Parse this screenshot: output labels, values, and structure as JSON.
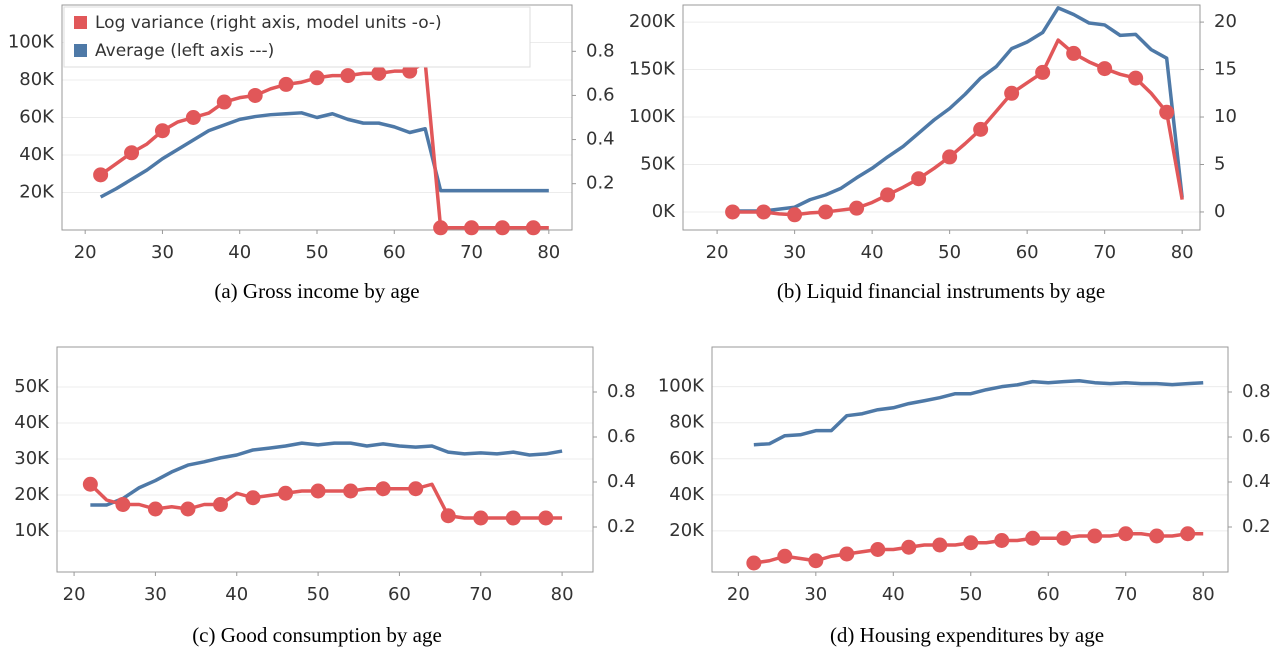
{
  "chart_data": [
    {
      "type": "line",
      "caption": "(a) Gross income by age",
      "legend": "upper left",
      "grid": true,
      "x": [
        22,
        24,
        26,
        28,
        30,
        32,
        34,
        36,
        38,
        40,
        42,
        44,
        46,
        48,
        50,
        52,
        54,
        56,
        58,
        60,
        62,
        64,
        66,
        68,
        70,
        72,
        74,
        76,
        78,
        80
      ],
      "xlim": [
        17,
        83
      ],
      "xticks": [
        20,
        30,
        40,
        50,
        60,
        70,
        80
      ],
      "ylim": [
        0,
        120000
      ],
      "yticks": [
        {
          "value": 20000,
          "label": "20K"
        },
        {
          "value": 40000,
          "label": "40K"
        },
        {
          "value": 60000,
          "label": "60K"
        },
        {
          "value": 80000,
          "label": "80K"
        },
        {
          "value": 100000,
          "label": "100K"
        }
      ],
      "y2lim": [
        -0.01,
        1.01
      ],
      "y2ticks": [
        0.2,
        0.4,
        0.6,
        0.8
      ],
      "series": [
        {
          "name": "Log variance (right axis, model units -o-)",
          "color": "#e15759",
          "axis": "y2",
          "values": [
            0.24,
            0.29,
            0.34,
            0.38,
            0.44,
            0.48,
            0.5,
            0.52,
            0.57,
            0.59,
            0.6,
            0.63,
            0.65,
            0.66,
            0.68,
            0.69,
            0.69,
            0.7,
            0.7,
            0.71,
            0.71,
            0.75,
            0,
            0,
            0,
            0,
            0,
            0,
            0,
            0
          ]
        },
        {
          "name": "Average (left axis ---)",
          "color": "#4e79a7",
          "values": [
            17600,
            22000,
            27000,
            32000,
            38000,
            43000,
            48000,
            53000,
            56000,
            59000,
            60500,
            61500,
            62000,
            62500,
            60000,
            62000,
            59000,
            57000,
            57000,
            55000,
            52000,
            54000,
            21000,
            21000,
            21000,
            21000,
            21000,
            21000,
            21000,
            21000
          ]
        }
      ]
    },
    {
      "type": "line",
      "caption": "(b) Liquid financial instruments by age",
      "grid": true,
      "x": [
        22,
        24,
        26,
        28,
        30,
        32,
        34,
        36,
        38,
        40,
        42,
        44,
        46,
        48,
        50,
        52,
        54,
        56,
        58,
        60,
        62,
        64,
        66,
        68,
        70,
        72,
        74,
        76,
        78,
        80
      ],
      "xlim": [
        15.6,
        82.3
      ],
      "xticks": [
        20,
        30,
        40,
        50,
        60,
        70,
        80
      ],
      "ylim": [
        -19000,
        218000
      ],
      "yticks": [
        {
          "value": 0,
          "label": "0K"
        },
        {
          "value": 50000,
          "label": "50K"
        },
        {
          "value": 100000,
          "label": "100K"
        },
        {
          "value": 150000,
          "label": "150K"
        },
        {
          "value": 200000,
          "label": "200K"
        }
      ],
      "y2lim": [
        -1.9,
        21.8
      ],
      "y2ticks": [
        0,
        5,
        10,
        15,
        20
      ],
      "series": [
        {
          "color": "#e15759",
          "axis": "y2",
          "values": [
            0,
            0,
            0,
            -0.2,
            -0.3,
            -0.1,
            0,
            0.2,
            0.4,
            1,
            1.8,
            2.6,
            3.5,
            4.6,
            5.8,
            7.2,
            8.7,
            10.6,
            12.5,
            13.6,
            14.7,
            18.1,
            16.7,
            15.8,
            15.1,
            14.5,
            14.1,
            12.5,
            10.5,
            1.3
          ]
        },
        {
          "color": "#4e79a7",
          "values": [
            1000,
            1000,
            1000,
            3000,
            5000,
            13000,
            18000,
            25000,
            36000,
            46000,
            58000,
            69000,
            83000,
            97000,
            109000,
            124000,
            141000,
            153000,
            172000,
            179000,
            189000,
            215000,
            208000,
            199000,
            197000,
            186000,
            187000,
            171000,
            162000,
            15000
          ]
        }
      ]
    },
    {
      "type": "line",
      "caption": "(c) Good consumption by age",
      "grid": true,
      "x": [
        22,
        24,
        26,
        28,
        30,
        32,
        34,
        36,
        38,
        40,
        42,
        44,
        46,
        48,
        50,
        52,
        54,
        56,
        58,
        60,
        62,
        64,
        66,
        68,
        70,
        72,
        74,
        76,
        78,
        80
      ],
      "xlim": [
        17.9,
        83.8
      ],
      "xticks": [
        20,
        30,
        40,
        50,
        60,
        70,
        80
      ],
      "ylim": [
        -1400,
        61100
      ],
      "yticks": [
        {
          "value": 10000,
          "label": "10K"
        },
        {
          "value": 20000,
          "label": "20K"
        },
        {
          "value": 30000,
          "label": "30K"
        },
        {
          "value": 40000,
          "label": "40K"
        },
        {
          "value": 50000,
          "label": "50K"
        }
      ],
      "y2lim": [
        0,
        1
      ],
      "y2ticks": [
        0.2,
        0.4,
        0.6,
        0.8
      ],
      "series": [
        {
          "color": "#e15759",
          "axis": "y2",
          "values": [
            0.39,
            0.32,
            0.3,
            0.3,
            0.28,
            0.29,
            0.28,
            0.3,
            0.3,
            0.35,
            0.33,
            0.34,
            0.35,
            0.36,
            0.36,
            0.36,
            0.36,
            0.37,
            0.37,
            0.37,
            0.37,
            0.39,
            0.25,
            0.24,
            0.24,
            0.24,
            0.24,
            0.24,
            0.24,
            0.24
          ]
        },
        {
          "color": "#4e79a7",
          "values": [
            17200,
            17200,
            19000,
            22000,
            24000,
            26400,
            28300,
            29200,
            30300,
            31100,
            32500,
            33000,
            33600,
            34400,
            33900,
            34400,
            34400,
            33600,
            34200,
            33600,
            33300,
            33600,
            31900,
            31400,
            31700,
            31400,
            31900,
            31100,
            31400,
            32200
          ]
        }
      ]
    },
    {
      "type": "line",
      "caption": "(d) Housing expenditures by age",
      "grid": true,
      "x": [
        22,
        24,
        26,
        28,
        30,
        32,
        34,
        36,
        38,
        40,
        42,
        44,
        46,
        48,
        50,
        52,
        54,
        56,
        58,
        60,
        62,
        64,
        66,
        68,
        70,
        72,
        74,
        76,
        78,
        80
      ],
      "xlim": [
        16.6,
        83.2
      ],
      "xticks": [
        20,
        30,
        40,
        50,
        60,
        70,
        80
      ],
      "ylim": [
        -2800,
        122000
      ],
      "yticks": [
        {
          "value": 20000,
          "label": "20K"
        },
        {
          "value": 40000,
          "label": "40K"
        },
        {
          "value": 60000,
          "label": "60K"
        },
        {
          "value": 80000,
          "label": "80K"
        },
        {
          "value": 100000,
          "label": "100K"
        }
      ],
      "y2lim": [
        0,
        1
      ],
      "y2ticks": [
        0.2,
        0.4,
        0.6,
        0.8
      ],
      "series": [
        {
          "color": "#e15759",
          "axis": "y2",
          "values": [
            0.04,
            0.05,
            0.07,
            0.06,
            0.05,
            0.07,
            0.08,
            0.09,
            0.1,
            0.1,
            0.11,
            0.12,
            0.12,
            0.12,
            0.13,
            0.13,
            0.14,
            0.14,
            0.15,
            0.15,
            0.15,
            0.16,
            0.16,
            0.16,
            0.17,
            0.17,
            0.16,
            0.16,
            0.17,
            0.17
          ]
        },
        {
          "color": "#4e79a7",
          "values": [
            67800,
            68300,
            72800,
            73300,
            75600,
            75600,
            83900,
            85000,
            87200,
            88300,
            90600,
            92200,
            93900,
            96100,
            96100,
            98300,
            100000,
            101000,
            102800,
            102200,
            102800,
            103300,
            102200,
            101700,
            102200,
            101700,
            101700,
            101100,
            101700,
            102200
          ]
        }
      ]
    }
  ]
}
